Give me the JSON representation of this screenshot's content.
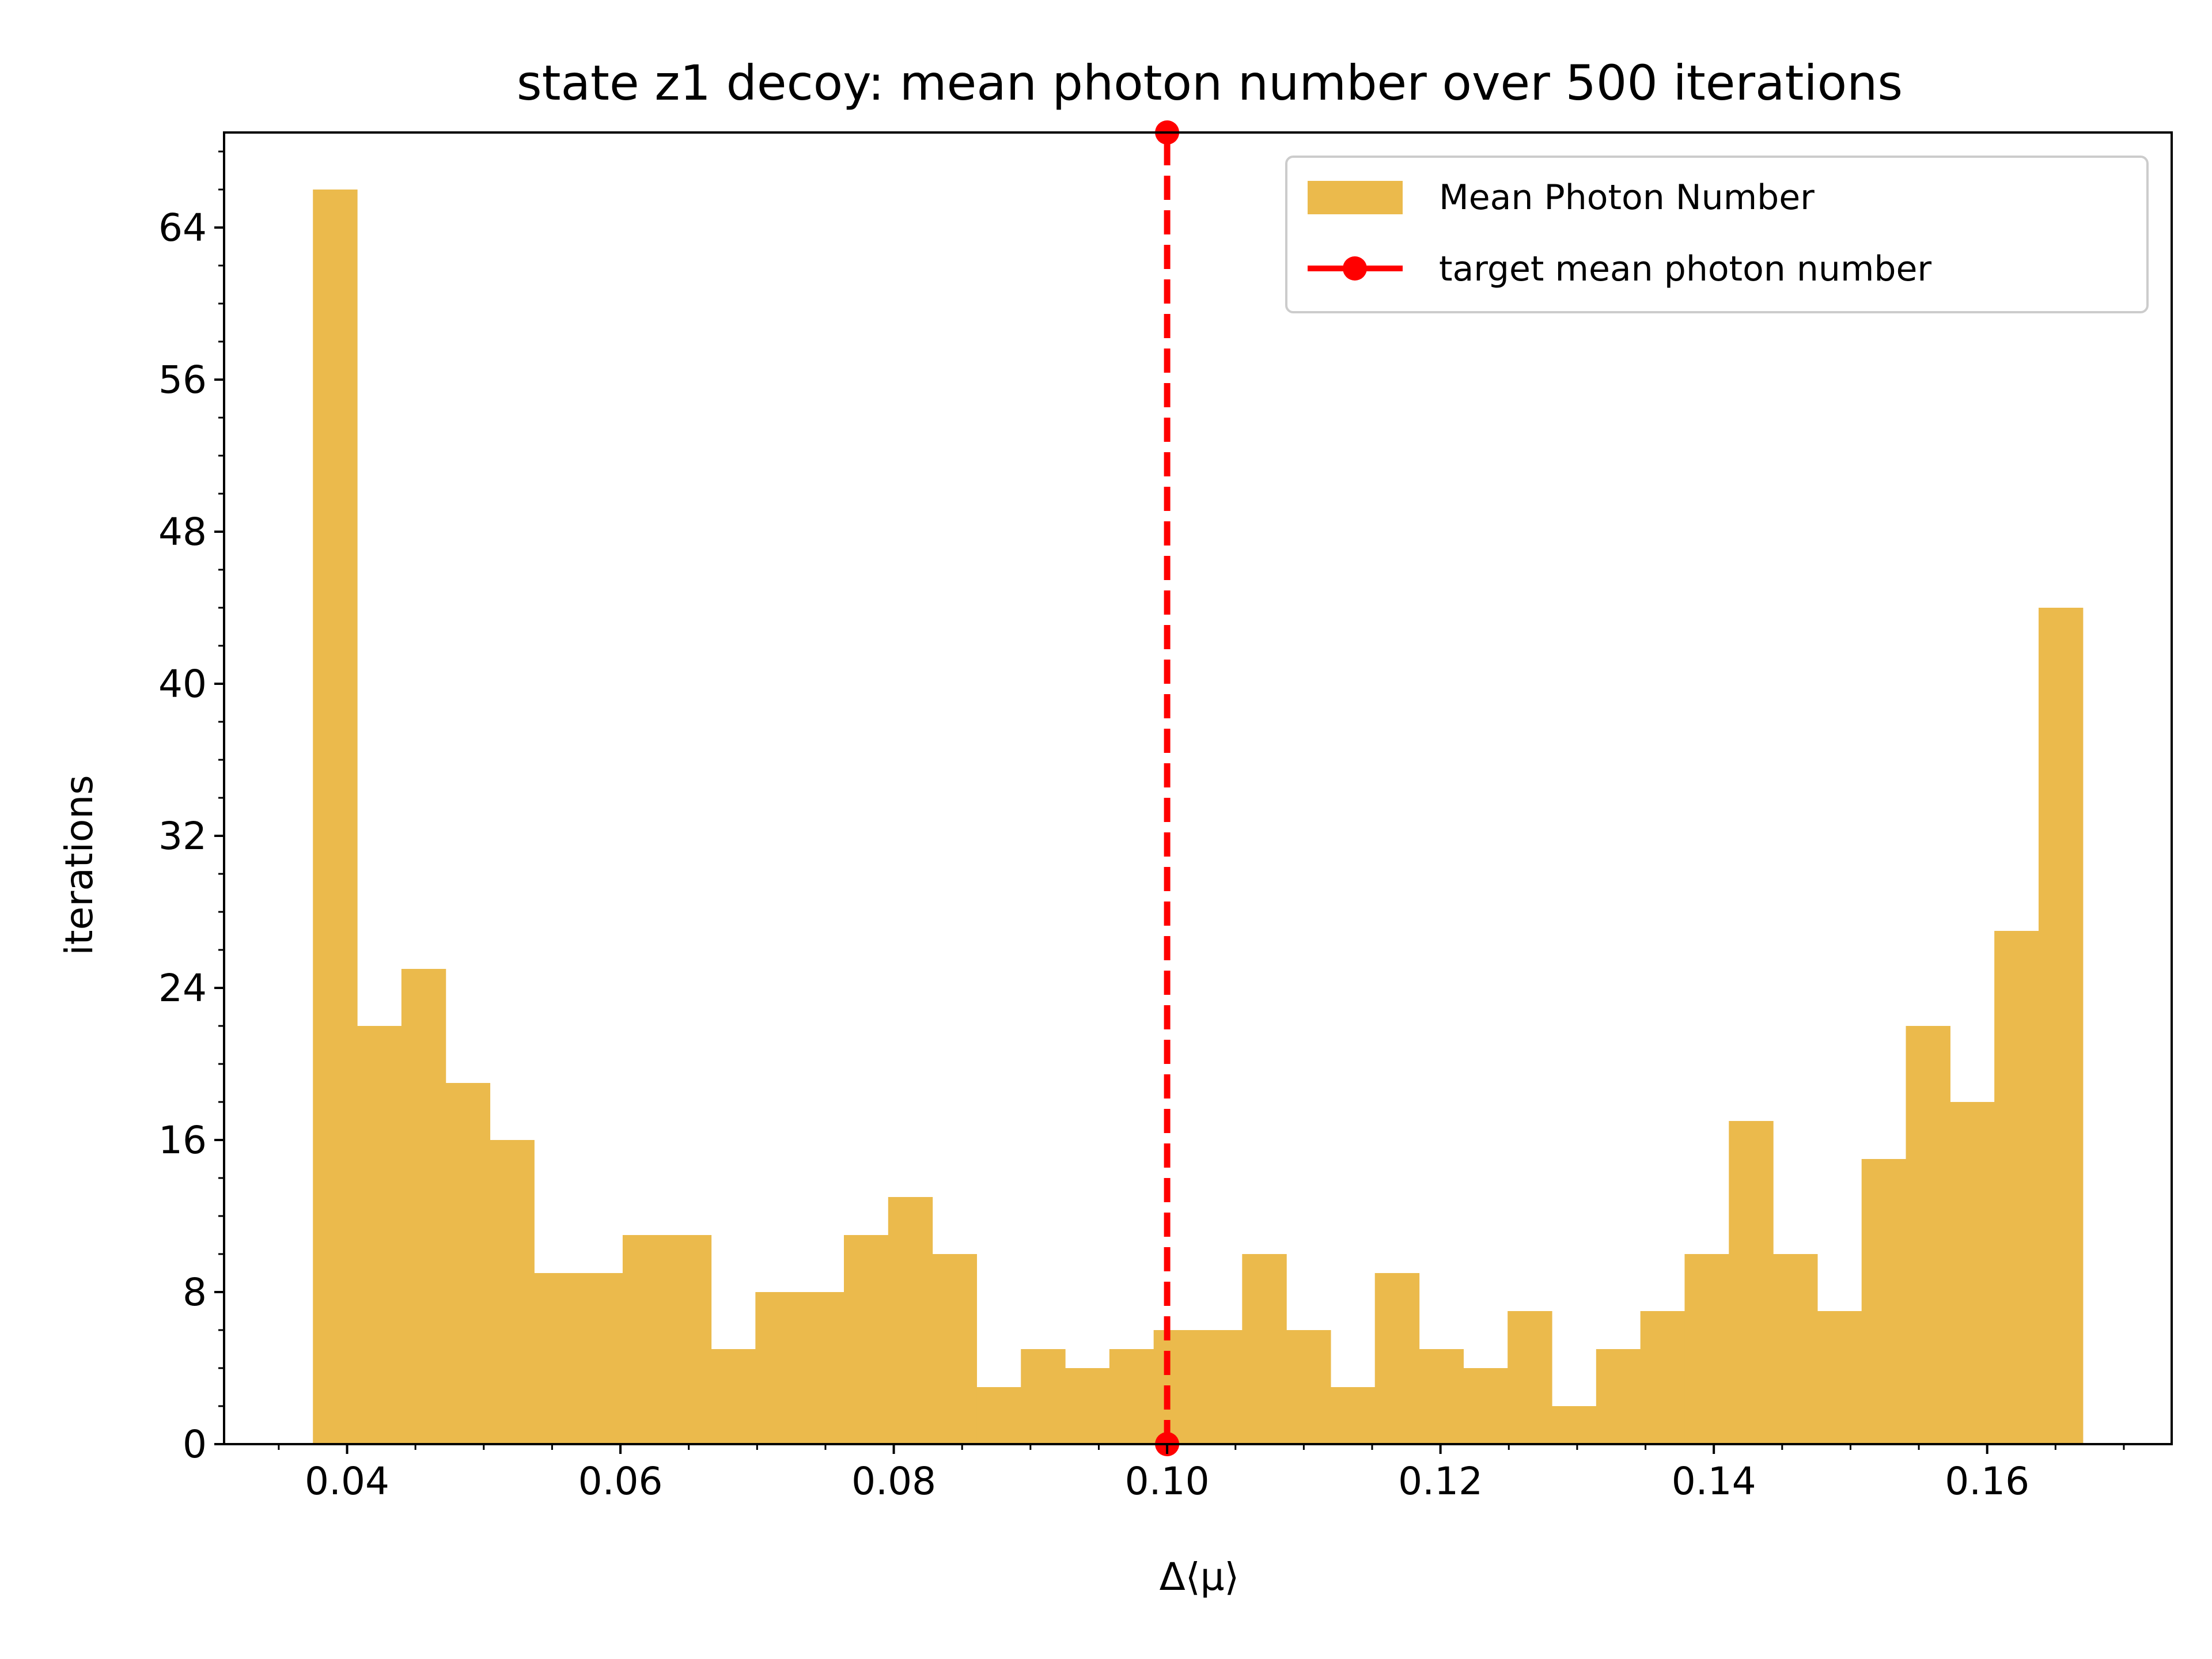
{
  "chart_data": {
    "type": "bar",
    "title": "state z1 decoy: mean photon number over 500 iterations",
    "xlabel": "Δ⟨μ⟩",
    "ylabel": "iterations",
    "xlim": [
      0.031,
      0.1735
    ],
    "ylim": [
      0,
      69
    ],
    "x_ticks": [
      0.04,
      0.06,
      0.08,
      0.1,
      0.12,
      0.14,
      0.16
    ],
    "x_tick_labels": [
      "0.04",
      "0.06",
      "0.08",
      "0.10",
      "0.12",
      "0.14",
      "0.16"
    ],
    "y_ticks": [
      0,
      8,
      16,
      24,
      32,
      40,
      48,
      56,
      64
    ],
    "y_tick_labels": [
      "0",
      "8",
      "16",
      "24",
      "32",
      "40",
      "48",
      "56",
      "64"
    ],
    "grid": false,
    "legend_position": "top-right",
    "series": [
      {
        "name": "Mean Photon Number",
        "kind": "histogram",
        "color": "#ebba4c",
        "bin_start": 0.0375,
        "bin_end": 0.167,
        "counts": [
          66,
          22,
          25,
          19,
          16,
          9,
          9,
          11,
          11,
          5,
          8,
          8,
          11,
          13,
          10,
          3,
          5,
          4,
          5,
          6,
          6,
          10,
          6,
          3,
          9,
          5,
          4,
          7,
          2,
          5,
          7,
          10,
          17,
          10,
          7,
          15,
          22,
          18,
          27,
          44
        ]
      },
      {
        "name": "target mean photon number",
        "kind": "vertical-line",
        "color": "#ff0000",
        "x": 0.1,
        "y": [
          0,
          69
        ]
      }
    ]
  }
}
